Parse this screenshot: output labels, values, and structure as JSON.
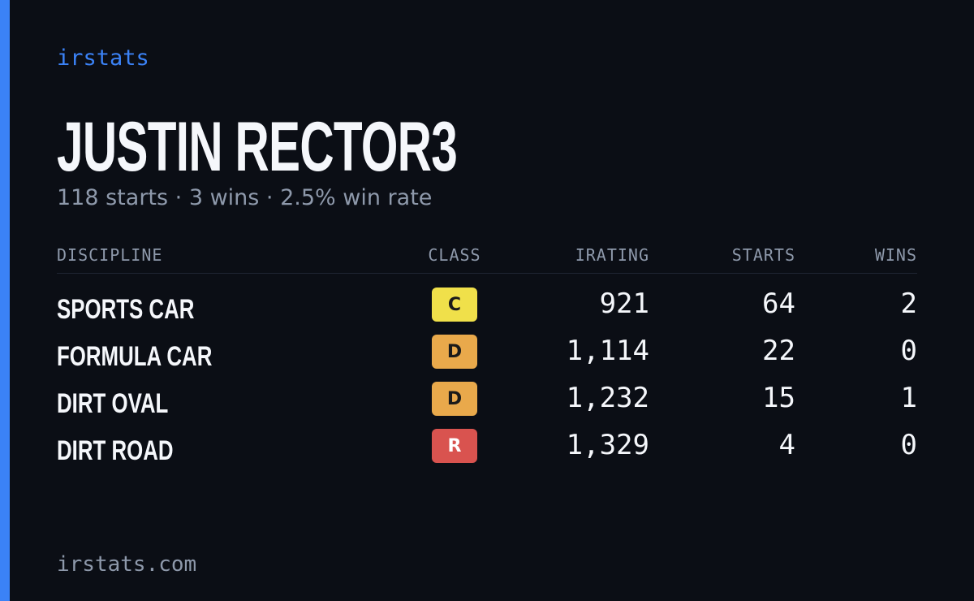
{
  "header": {
    "brand": "irstats",
    "title": "JUSTIN RECTOR3",
    "subtitle": "118 starts · 3 wins · 2.5% win rate"
  },
  "table": {
    "columns": [
      "DISCIPLINE",
      "CLASS",
      "IRATING",
      "STARTS",
      "WINS"
    ],
    "rows": [
      [
        "SPORTS CAR",
        "C",
        "921",
        "64",
        "2"
      ],
      [
        "FORMULA CAR",
        "D",
        "1,114",
        "22",
        "0"
      ],
      [
        "DIRT OVAL",
        "D",
        "1,232",
        "15",
        "1"
      ],
      [
        "DIRT ROAD",
        "R",
        "1,329",
        "4",
        "0"
      ]
    ]
  },
  "footer": {
    "site": "irstats.com"
  }
}
